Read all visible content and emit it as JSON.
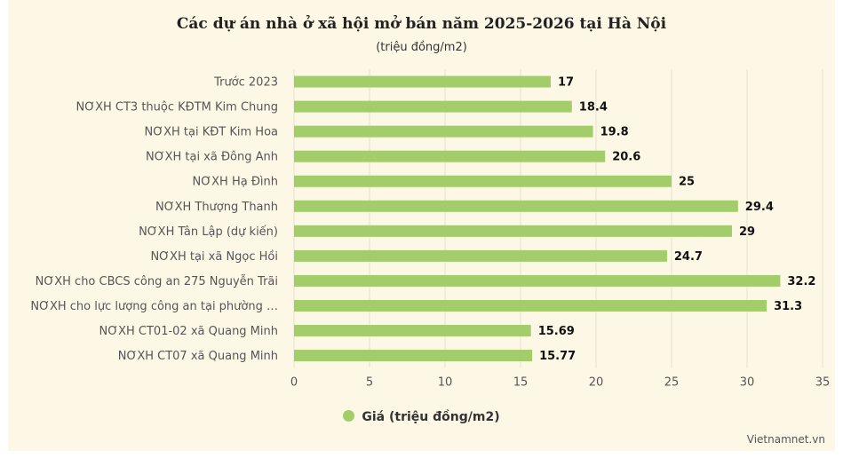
{
  "chart_data": {
    "type": "bar",
    "orientation": "horizontal",
    "title": "Các dự án nhà ở xã hội mở bán năm 2025-2026 tại Hà Nội",
    "subtitle": "(triệu đồng/m2)",
    "categories": [
      "Trước 2023",
      "NƠXH CT3 thuộc KĐTM Kim Chung",
      "NƠXH tại KĐT Kim Hoa",
      "NƠXH tại xã Đông Anh",
      "NƠXH Hạ Đình",
      "NƠXH Thượng Thanh",
      "NƠXH Tân Lập (dự kiến)",
      "NƠXH tại xã Ngọc Hồi",
      "NƠXH cho CBCS công an 275 Nguyễn Trãi",
      "NƠXH cho lực lượng công an tại phường …",
      "NƠXH CT01-02 xã Quang Minh",
      "NƠXH CT07 xã Quang Minh"
    ],
    "series": [
      {
        "name": "Giá (triệu đồng/m2)",
        "values": [
          17,
          18.4,
          19.8,
          20.6,
          25,
          29.4,
          29,
          24.7,
          32.2,
          31.3,
          15.69,
          15.77
        ],
        "value_labels": [
          "17",
          "18.4",
          "19.8",
          "20.6",
          "25",
          "29.4",
          "29",
          "24.7",
          "32.2",
          "31.3",
          "15.69",
          "15.77"
        ],
        "color": "#a3cc6a"
      }
    ],
    "xlim": [
      0,
      35
    ],
    "xticks": [
      "0",
      "5",
      "10",
      "15",
      "20",
      "25",
      "30",
      "35"
    ],
    "grid": true,
    "legend": "bottom-center"
  },
  "colors": {
    "background": "#fdf8e6",
    "bar": "#a3cc6a",
    "grid": "#e8e2cf"
  },
  "credit": "Vietnamnet.vn"
}
